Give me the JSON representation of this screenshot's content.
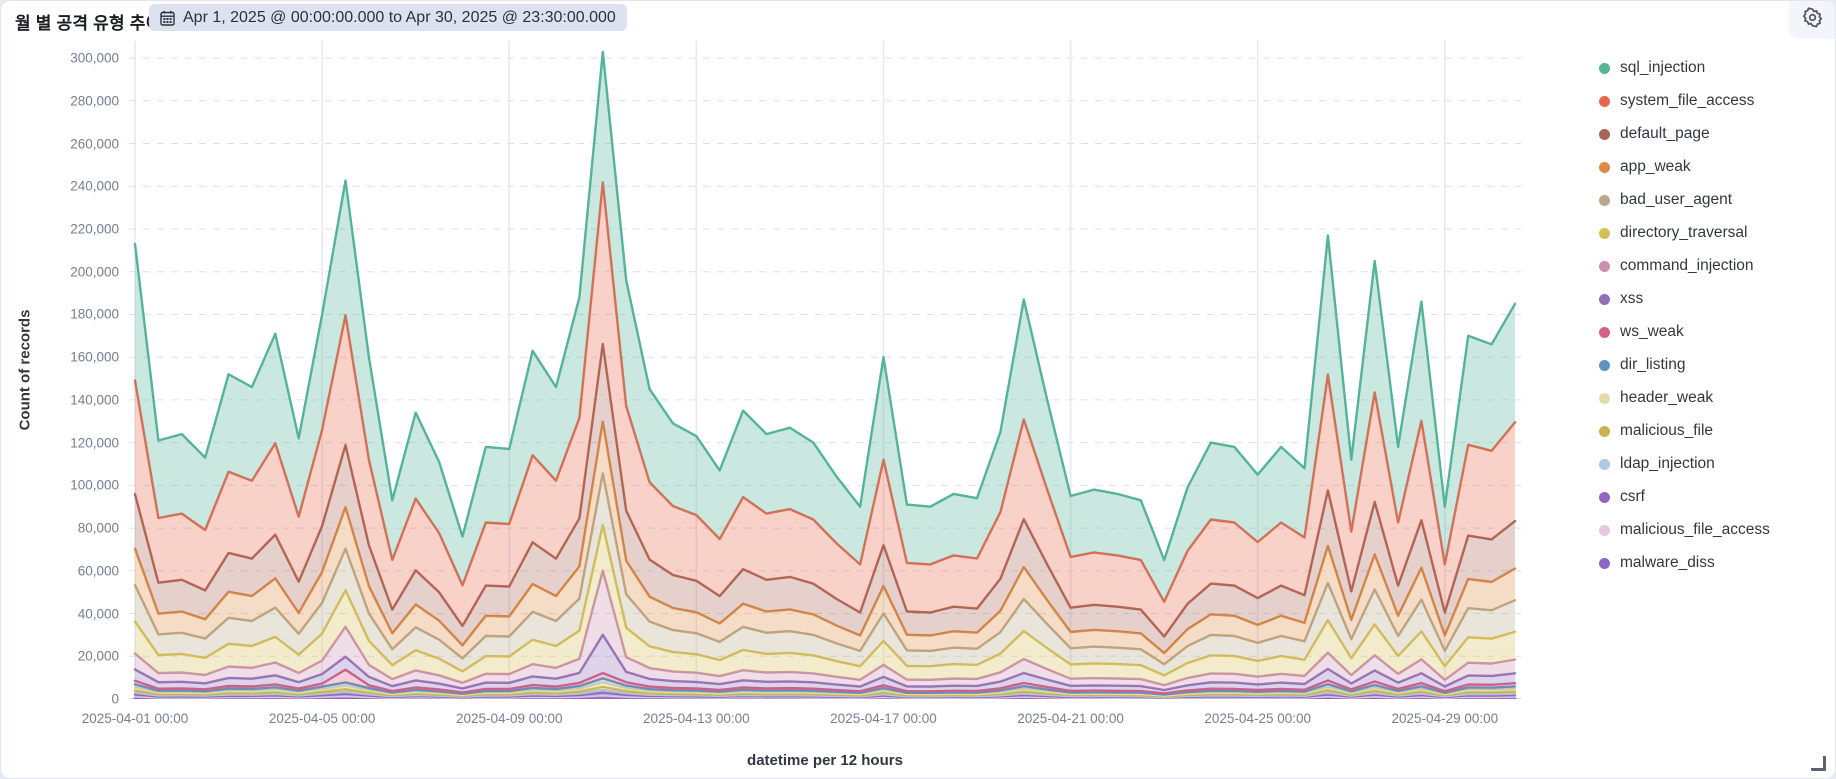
{
  "header": {
    "title": "월 별 공격 유형 추이",
    "date_range": "Apr 1, 2025 @ 00:00:00.000 to Apr 30, 2025 @ 23:30:00.000"
  },
  "colors": {
    "badge_bg": "#dce2f0",
    "axis_title": "#343741",
    "tick_label": "#767e92",
    "grid_h": "#dcdfe8",
    "grid_v": "#e7e9f0"
  },
  "icons": {
    "calendar": "calendar-icon",
    "gear": "gear-icon",
    "resize": "resize-handle-icon"
  },
  "chart_data": {
    "type": "area",
    "stacked": true,
    "title": "월 별 공격 유형 추이",
    "xlabel": "datetime per 12 hours",
    "ylabel": "Count of records",
    "ylim": [
      0,
      308000
    ],
    "y_tick_step": 20000,
    "y_tick_max": 300000,
    "grid": {
      "horizontal": "dashed",
      "vertical": "solid"
    },
    "legend_position": "right",
    "fill_opacity": 0.3,
    "x_tick_indices": [
      0,
      8,
      16,
      24,
      32,
      40,
      48,
      56
    ],
    "x_tick_labels": [
      "2025-04-01 00:00",
      "2025-04-05 00:00",
      "2025-04-09 00:00",
      "2025-04-13 00:00",
      "2025-04-17 00:00",
      "2025-04-21 00:00",
      "2025-04-25 00:00",
      "2025-04-29 00:00"
    ],
    "x": [
      "2025-04-01 00:00",
      "2025-04-01 12:00",
      "2025-04-02 00:00",
      "2025-04-02 12:00",
      "2025-04-03 00:00",
      "2025-04-03 12:00",
      "2025-04-04 00:00",
      "2025-04-04 12:00",
      "2025-04-05 00:00",
      "2025-04-05 12:00",
      "2025-04-06 00:00",
      "2025-04-06 12:00",
      "2025-04-07 00:00",
      "2025-04-07 12:00",
      "2025-04-08 00:00",
      "2025-04-08 12:00",
      "2025-04-09 00:00",
      "2025-04-09 12:00",
      "2025-04-10 00:00",
      "2025-04-10 12:00",
      "2025-04-11 00:00",
      "2025-04-11 12:00",
      "2025-04-12 00:00",
      "2025-04-12 12:00",
      "2025-04-13 00:00",
      "2025-04-13 12:00",
      "2025-04-14 00:00",
      "2025-04-14 12:00",
      "2025-04-15 00:00",
      "2025-04-15 12:00",
      "2025-04-16 00:00",
      "2025-04-16 12:00",
      "2025-04-17 00:00",
      "2025-04-17 12:00",
      "2025-04-18 00:00",
      "2025-04-18 12:00",
      "2025-04-19 00:00",
      "2025-04-19 12:00",
      "2025-04-20 00:00",
      "2025-04-20 12:00",
      "2025-04-21 00:00",
      "2025-04-21 12:00",
      "2025-04-22 00:00",
      "2025-04-22 12:00",
      "2025-04-23 00:00",
      "2025-04-23 12:00",
      "2025-04-24 00:00",
      "2025-04-24 12:00",
      "2025-04-25 00:00",
      "2025-04-25 12:00",
      "2025-04-26 00:00",
      "2025-04-26 12:00",
      "2025-04-27 00:00",
      "2025-04-27 12:00",
      "2025-04-28 00:00",
      "2025-04-28 12:00",
      "2025-04-29 00:00",
      "2025-04-29 12:00",
      "2025-04-30 00:00",
      "2025-04-30 12:00"
    ],
    "series": [
      {
        "name": "sql_injection",
        "color": "#54B399",
        "values": [
          63900,
          36300,
          37200,
          33900,
          45600,
          43800,
          51300,
          36600,
          54000,
          63000,
          48000,
          27900,
          40200,
          33300,
          22800,
          35400,
          35100,
          48900,
          43800,
          56400,
          61000,
          58800,
          43500,
          38700,
          36900,
          32100,
          40500,
          37200,
          38100,
          36000,
          31200,
          27000,
          48000,
          27300,
          27000,
          28800,
          28200,
          37500,
          56100,
          42000,
          28500,
          29400,
          28800,
          27900,
          19500,
          29700,
          36000,
          35400,
          31500,
          35400,
          32400,
          65100,
          33600,
          61500,
          35400,
          55800,
          27000,
          51000,
          49800,
          55500
        ]
      },
      {
        "name": "system_file_access",
        "color": "#E7664C",
        "values": [
          53250,
          30250,
          31000,
          28250,
          38000,
          36500,
          42750,
          30500,
          45000,
          60750,
          40000,
          23250,
          33500,
          27750,
          19000,
          29500,
          29250,
          40750,
          36500,
          47000,
          75750,
          49000,
          36250,
          32250,
          30750,
          26750,
          33750,
          31000,
          31750,
          30000,
          26000,
          22500,
          40000,
          22750,
          22500,
          24000,
          23500,
          31250,
          46750,
          35000,
          23750,
          24500,
          24000,
          23250,
          16250,
          24750,
          30000,
          29500,
          26250,
          29500,
          27000,
          54250,
          28000,
          51250,
          29500,
          46500,
          22500,
          42500,
          41500,
          46250
        ]
      },
      {
        "name": "default_page",
        "color": "#AA6556",
        "values": [
          25560,
          14520,
          14880,
          13560,
          18240,
          17520,
          20520,
          14640,
          21600,
          29160,
          19200,
          11160,
          16080,
          13320,
          9120,
          14160,
          14040,
          19560,
          17520,
          22560,
          36360,
          23520,
          17400,
          15480,
          14760,
          12840,
          16200,
          14880,
          15240,
          14400,
          12480,
          10800,
          19200,
          10920,
          10800,
          11520,
          11280,
          15000,
          22440,
          16800,
          11400,
          11760,
          11520,
          11160,
          7800,
          11880,
          14400,
          14160,
          12600,
          14160,
          12960,
          26040,
          13440,
          24600,
          14160,
          22320,
          10800,
          20400,
          19920,
          22200
        ]
      },
      {
        "name": "app_weak",
        "color": "#DA8B45",
        "values": [
          17040,
          9680,
          9920,
          9040,
          12160,
          11680,
          13680,
          9760,
          14400,
          19440,
          12800,
          7440,
          10720,
          8880,
          6080,
          9440,
          9360,
          13040,
          11680,
          15040,
          24240,
          15680,
          11600,
          10320,
          9840,
          8560,
          10800,
          9920,
          10160,
          9600,
          8320,
          7200,
          12800,
          7280,
          7200,
          7680,
          7520,
          10000,
          14960,
          11200,
          7600,
          7840,
          7680,
          7440,
          5200,
          7920,
          9600,
          9440,
          8400,
          9440,
          8640,
          17360,
          8960,
          16400,
          9440,
          14880,
          7200,
          13600,
          13280,
          14800
        ]
      },
      {
        "name": "bad_user_agent",
        "color": "#B9A888",
        "values": [
          17040,
          9680,
          9920,
          9040,
          12160,
          11680,
          13680,
          9760,
          14400,
          19440,
          12800,
          7440,
          10720,
          8880,
          6080,
          9440,
          9360,
          13040,
          11680,
          15040,
          24240,
          15680,
          11600,
          10320,
          9840,
          8560,
          10800,
          9920,
          10160,
          9600,
          8320,
          7200,
          12800,
          7280,
          7200,
          7680,
          7520,
          10000,
          14960,
          11200,
          7600,
          7840,
          7680,
          7440,
          5200,
          7920,
          9600,
          9440,
          8400,
          9440,
          8640,
          17360,
          8960,
          16400,
          9440,
          14880,
          7200,
          13600,
          13280,
          14800
        ]
      },
      {
        "name": "directory_traversal",
        "color": "#D6BF57",
        "values": [
          14910,
          8470,
          8680,
          7910,
          10640,
          10220,
          11970,
          8540,
          12600,
          17010,
          11200,
          6510,
          9380,
          7770,
          5320,
          8260,
          8190,
          11410,
          10220,
          13160,
          21210,
          13720,
          10150,
          9030,
          8610,
          7490,
          9450,
          8680,
          8890,
          8400,
          7280,
          6300,
          11200,
          6370,
          6300,
          6720,
          6580,
          8750,
          13090,
          9800,
          6650,
          6860,
          6720,
          6510,
          4550,
          6930,
          8400,
          8260,
          7350,
          8260,
          7560,
          15190,
          7840,
          14350,
          8260,
          13020,
          6300,
          11900,
          11620,
          12950
        ]
      },
      {
        "name": "command_injection",
        "color": "#CA8EAE",
        "values": [
          7455,
          4235,
          4340,
          3955,
          5320,
          5110,
          5985,
          4270,
          6300,
          14000,
          5600,
          3255,
          4690,
          3885,
          2660,
          4130,
          4095,
          5705,
          5110,
          6580,
          30000,
          6860,
          5075,
          4515,
          4305,
          3745,
          4725,
          4340,
          4445,
          4200,
          3640,
          3150,
          5600,
          3185,
          3150,
          3360,
          3290,
          4375,
          6545,
          4900,
          3325,
          3430,
          3360,
          3255,
          2275,
          3465,
          4200,
          4130,
          3675,
          4130,
          3780,
          7595,
          3920,
          7175,
          4130,
          6510,
          3150,
          5950,
          5810,
          6475
        ]
      },
      {
        "name": "xss",
        "color": "#9170B8",
        "values": [
          5325,
          3025,
          3100,
          2825,
          3800,
          3650,
          4275,
          3050,
          4500,
          6075,
          4000,
          2325,
          3350,
          2775,
          1900,
          2950,
          2925,
          4075,
          3650,
          4700,
          18000,
          4900,
          3625,
          3225,
          3075,
          2675,
          3375,
          3100,
          3175,
          3000,
          2600,
          2250,
          4000,
          2275,
          2250,
          2400,
          2350,
          3125,
          4675,
          3500,
          2375,
          2450,
          2400,
          2325,
          1625,
          2475,
          3000,
          2950,
          2625,
          2950,
          2700,
          5425,
          2800,
          5125,
          2950,
          4650,
          2250,
          4250,
          4150,
          4625
        ]
      },
      {
        "name": "ws_weak",
        "color": "#D36086",
        "values": [
          1704,
          968,
          992,
          904,
          1216,
          1168,
          1368,
          976,
          1440,
          6000,
          1280,
          744,
          1072,
          888,
          608,
          944,
          936,
          1304,
          1168,
          1504,
          2424,
          1568,
          1160,
          1032,
          984,
          856,
          1080,
          992,
          1016,
          960,
          832,
          720,
          1280,
          728,
          720,
          768,
          752,
          1000,
          1496,
          1120,
          760,
          784,
          768,
          744,
          520,
          792,
          960,
          944,
          840,
          944,
          864,
          1736,
          896,
          1640,
          944,
          1488,
          720,
          1360,
          1328,
          1480
        ]
      },
      {
        "name": "dir_listing",
        "color": "#6092C0",
        "values": [
          1491,
          847,
          868,
          791,
          1064,
          1022,
          1197,
          854,
          1260,
          1701,
          1120,
          651,
          938,
          777,
          532,
          826,
          819,
          1141,
          1022,
          1316,
          2121,
          1372,
          1015,
          903,
          861,
          749,
          945,
          868,
          889,
          840,
          728,
          630,
          1120,
          637,
          630,
          672,
          658,
          875,
          1309,
          980,
          665,
          686,
          672,
          651,
          455,
          693,
          840,
          826,
          735,
          826,
          756,
          1519,
          784,
          1435,
          826,
          1302,
          630,
          1190,
          1162,
          1295
        ]
      },
      {
        "name": "header_weak",
        "color": "#E5DCA3",
        "values": [
          1278,
          726,
          744,
          678,
          912,
          876,
          1026,
          732,
          1080,
          1458,
          960,
          558,
          804,
          666,
          456,
          708,
          702,
          978,
          876,
          1128,
          1818,
          1176,
          870,
          774,
          738,
          642,
          810,
          744,
          762,
          720,
          624,
          540,
          960,
          546,
          540,
          576,
          564,
          750,
          1122,
          840,
          570,
          588,
          576,
          558,
          390,
          594,
          720,
          708,
          630,
          708,
          648,
          1302,
          672,
          1230,
          708,
          1116,
          540,
          1020,
          996,
          1110
        ]
      },
      {
        "name": "malicious_file",
        "color": "#CBB24E",
        "values": [
          1065,
          605,
          620,
          565,
          760,
          730,
          855,
          610,
          900,
          1215,
          800,
          465,
          670,
          555,
          380,
          590,
          585,
          815,
          730,
          940,
          1515,
          980,
          725,
          645,
          615,
          535,
          675,
          620,
          635,
          600,
          520,
          450,
          800,
          455,
          450,
          480,
          470,
          625,
          935,
          700,
          475,
          490,
          480,
          465,
          325,
          495,
          600,
          590,
          525,
          590,
          540,
          1085,
          560,
          1025,
          590,
          930,
          450,
          850,
          830,
          925
        ]
      },
      {
        "name": "ldap_injection",
        "color": "#AEC8E3",
        "values": [
          852,
          484,
          496,
          452,
          608,
          584,
          684,
          488,
          720,
          972,
          640,
          372,
          536,
          444,
          304,
          472,
          468,
          652,
          584,
          752,
          1212,
          784,
          580,
          516,
          492,
          428,
          540,
          496,
          508,
          480,
          416,
          360,
          640,
          364,
          360,
          384,
          376,
          500,
          748,
          560,
          380,
          392,
          384,
          372,
          260,
          396,
          480,
          472,
          420,
          472,
          432,
          868,
          448,
          820,
          472,
          744,
          360,
          680,
          664,
          740
        ]
      },
      {
        "name": "csrf",
        "color": "#8F68BE",
        "values": [
          852,
          484,
          496,
          452,
          608,
          584,
          684,
          488,
          720,
          972,
          640,
          372,
          536,
          444,
          304,
          472,
          468,
          652,
          584,
          752,
          1212,
          784,
          580,
          516,
          492,
          428,
          540,
          496,
          508,
          480,
          416,
          360,
          640,
          364,
          360,
          384,
          376,
          500,
          748,
          560,
          380,
          392,
          384,
          372,
          260,
          396,
          480,
          472,
          420,
          472,
          432,
          868,
          448,
          820,
          472,
          744,
          360,
          680,
          664,
          740
        ]
      },
      {
        "name": "malicious_file_access",
        "color": "#E3C8DE",
        "values": [
          852,
          484,
          496,
          452,
          608,
          584,
          684,
          488,
          720,
          972,
          640,
          372,
          536,
          444,
          304,
          472,
          468,
          652,
          584,
          752,
          1212,
          784,
          580,
          516,
          492,
          428,
          540,
          496,
          508,
          480,
          416,
          360,
          640,
          364,
          360,
          384,
          376,
          500,
          748,
          560,
          380,
          392,
          384,
          372,
          260,
          396,
          480,
          472,
          420,
          472,
          432,
          868,
          448,
          820,
          472,
          744,
          360,
          680,
          664,
          740
        ]
      },
      {
        "name": "malware_diss",
        "color": "#8B67C6",
        "values": [
          426,
          242,
          248,
          226,
          304,
          292,
          342,
          244,
          360,
          486,
          320,
          186,
          268,
          222,
          152,
          236,
          234,
          326,
          292,
          376,
          606,
          392,
          290,
          258,
          246,
          214,
          270,
          248,
          254,
          240,
          208,
          180,
          320,
          182,
          180,
          192,
          188,
          250,
          374,
          280,
          190,
          196,
          192,
          186,
          130,
          198,
          240,
          236,
          210,
          236,
          216,
          434,
          224,
          410,
          236,
          372,
          180,
          340,
          332,
          370
        ]
      }
    ]
  }
}
